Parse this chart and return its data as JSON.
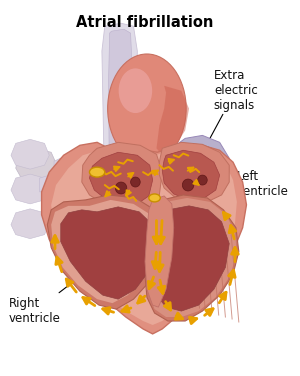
{
  "title": "Atrial fibrillation",
  "title_fontsize": 10.5,
  "title_fontweight": "bold",
  "bg_color": "#ffffff",
  "label_extra": "Extra\nelectric\nsignals",
  "label_left_v": "Left\nventricle",
  "label_right_v": "Right\nventricle",
  "arrow_color": "#e8a000",
  "signal_color": "#e8a000"
}
